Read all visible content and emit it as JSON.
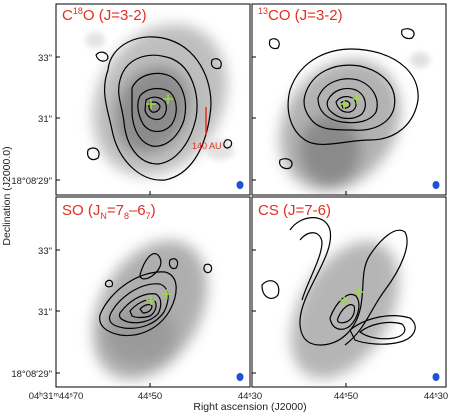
{
  "figure": {
    "ylabel": "Declination (J2000.0)",
    "xlabel": "Right ascension (J2000)",
    "y_ticks_top": [
      "33\"",
      "31\"",
      "18°08′29\""
    ],
    "y_ticks_bottom": [
      "33\"",
      "31\"",
      "18°08′29\""
    ],
    "x_ticks": [
      "04ʰ31ᵐ44ˢ70",
      "44ˢ50",
      "44ˢ30"
    ],
    "x_ticks_right": [
      "44ˢ50",
      "44ˢ30"
    ]
  },
  "panels": [
    {
      "id": "c18o",
      "title_pre": "C",
      "title_sup": "18",
      "title_post": "O (J=3-2)",
      "scale_label": "140 AU"
    },
    {
      "id": "13co",
      "title_pre": "",
      "title_sup": "13",
      "title_post": "CO (J=3-2)"
    },
    {
      "id": "so",
      "title_pre": "SO (J",
      "title_sub": "N",
      "title_post": "=7",
      "title_sub2": "8",
      "title_post2": "–6",
      "title_sub3": "7",
      "title_post3": ")"
    },
    {
      "id": "cs",
      "title_pre": "CS (J=7-6)"
    }
  ],
  "colors": {
    "title": "#e0301e",
    "contour": "#000000",
    "beam": "#1e4fd8",
    "source_cross": "#9be03a",
    "greyscale": "#777777"
  },
  "chart_data": {
    "type": "other",
    "description_x_axis": "Right ascension (J2000)",
    "description_y_axis": "Declination (J2000.0)",
    "panels": [
      "C18O (J=3-2)",
      "13CO (J=3-2)",
      "SO (JN=78-67)",
      "CS (J=7-6)"
    ],
    "x_ticks": [
      "04h31m44s70",
      "44s50",
      "44s30"
    ],
    "y_ticks": [
      "33\"",
      "31\"",
      "18d08m29\""
    ],
    "scale_bar": "140 AU",
    "sources": 2
  }
}
